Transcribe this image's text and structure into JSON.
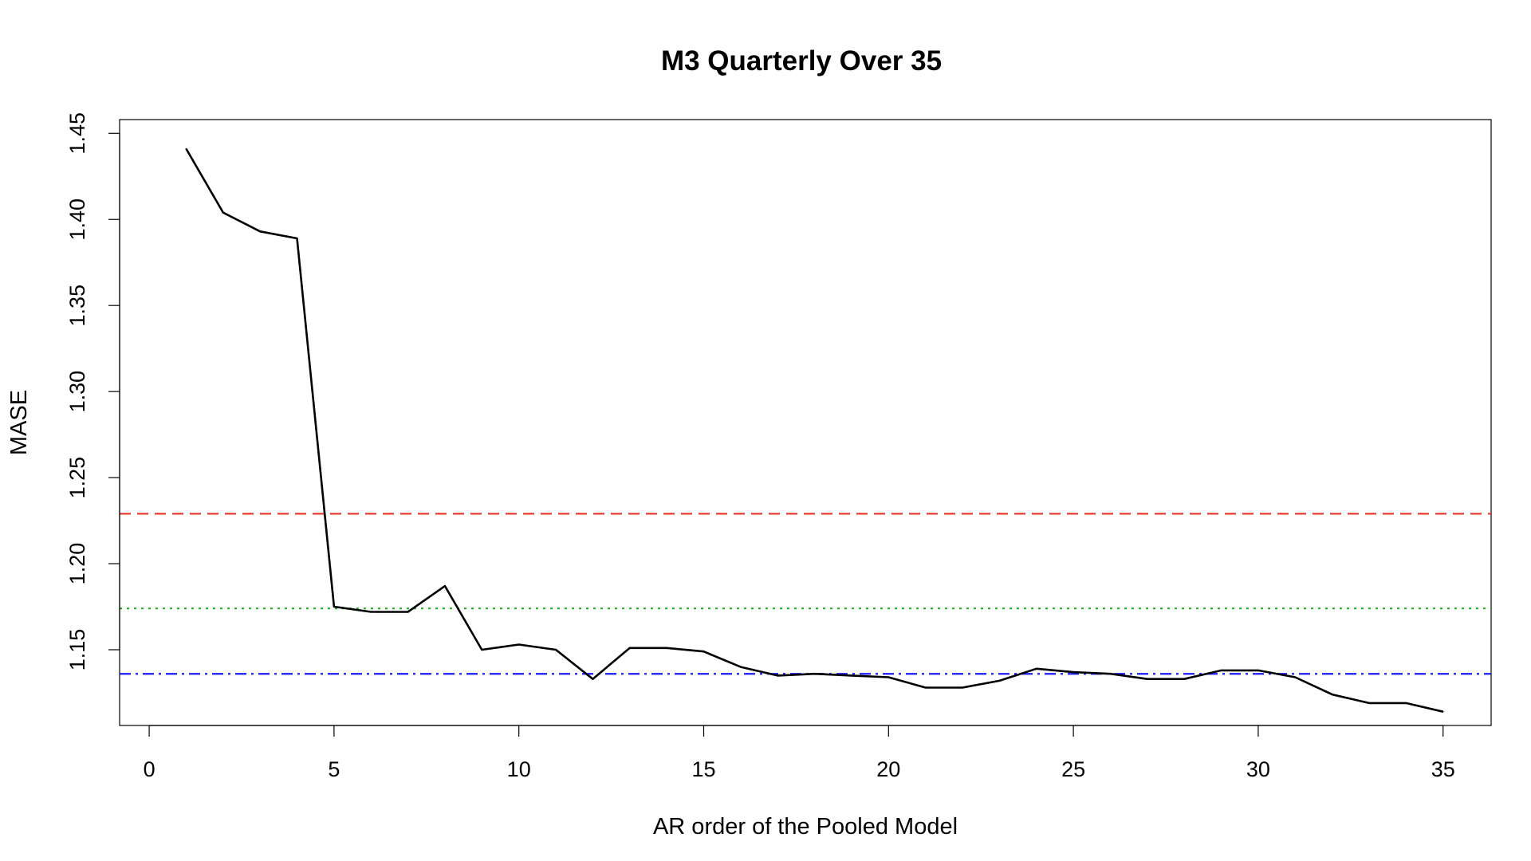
{
  "chart_data": {
    "type": "line",
    "title": "M3 Quarterly Over 35",
    "xlabel": "AR order of the Pooled Model",
    "ylabel": "MASE",
    "xlim": [
      -0.8,
      36.3
    ],
    "ylim": [
      1.106,
      1.458
    ],
    "x_ticks": [
      0,
      5,
      10,
      15,
      20,
      25,
      30,
      35
    ],
    "x_tick_labels": [
      "0",
      "5",
      "10",
      "15",
      "20",
      "25",
      "30",
      "35"
    ],
    "y_ticks": [
      1.15,
      1.2,
      1.25,
      1.3,
      1.35,
      1.4,
      1.45
    ],
    "y_tick_labels": [
      "1.15",
      "1.20",
      "1.25",
      "1.30",
      "1.35",
      "1.40",
      "1.45"
    ],
    "grid": false,
    "series": [
      {
        "color": "#000000",
        "style": "solid",
        "x": [
          1,
          2,
          3,
          4,
          5,
          6,
          7,
          8,
          9,
          10,
          11,
          12,
          13,
          14,
          15,
          16,
          17,
          18,
          19,
          20,
          21,
          22,
          23,
          24,
          25,
          26,
          27,
          28,
          29,
          30,
          31,
          32,
          33,
          34,
          35
        ],
        "values": [
          1.441,
          1.404,
          1.393,
          1.389,
          1.175,
          1.172,
          1.172,
          1.187,
          1.15,
          1.153,
          1.15,
          1.133,
          1.151,
          1.151,
          1.149,
          1.14,
          1.135,
          1.136,
          1.135,
          1.134,
          1.128,
          1.128,
          1.132,
          1.139,
          1.137,
          1.136,
          1.133,
          1.133,
          1.138,
          1.138,
          1.134,
          1.124,
          1.119,
          1.119,
          1.114
        ]
      }
    ],
    "reference_lines": [
      {
        "y": 1.229,
        "color": "#e8302b",
        "style": "dashed"
      },
      {
        "y": 1.174,
        "color": "#1db31d",
        "style": "dotted"
      },
      {
        "y": 1.136,
        "color": "#1a1aff",
        "style": "dashdot"
      }
    ]
  }
}
